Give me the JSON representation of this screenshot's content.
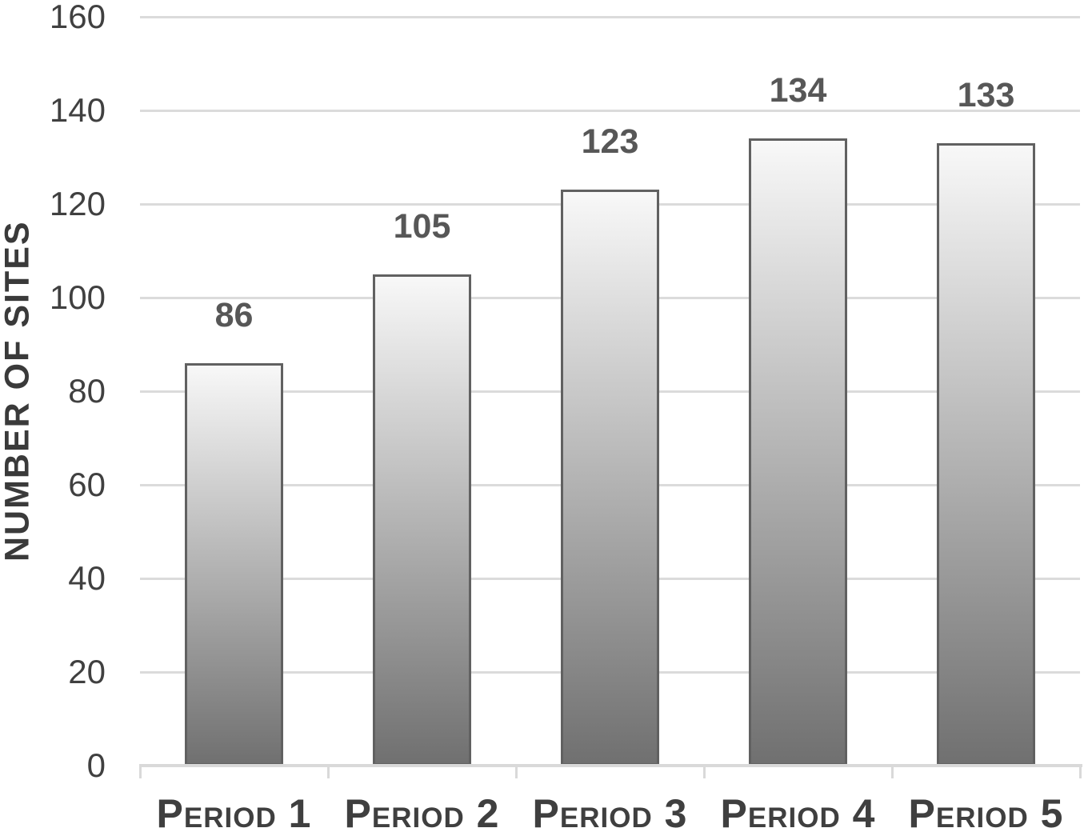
{
  "chart_data": {
    "type": "bar",
    "categories": [
      "Period 1",
      "Period 2",
      "Period 3",
      "Period 4",
      "Period 5"
    ],
    "values": [
      86,
      105,
      123,
      134,
      133
    ],
    "data_labels_shown": true,
    "title": "",
    "xlabel": "",
    "ylabel": "NUMBER OF SITES",
    "ylim": [
      0,
      160
    ],
    "yticks": [
      0,
      20,
      40,
      60,
      80,
      100,
      120,
      140,
      160
    ],
    "grid": true,
    "legend": false,
    "bar_style": "vertical gradient, light top to dark bottom, dark border"
  },
  "colors": {
    "background": "#ffffff",
    "gridline": "#dbdbdb",
    "axis_line": "#d9d9d9",
    "tick_label": "#404040",
    "value_label": "#575757",
    "category_label": "#3f3f3f",
    "axis_title": "#3a3a3a",
    "bar_border": "#616161",
    "bar_gradient_top": "#f8f8f8",
    "bar_gradient_bottom": "#707070"
  }
}
